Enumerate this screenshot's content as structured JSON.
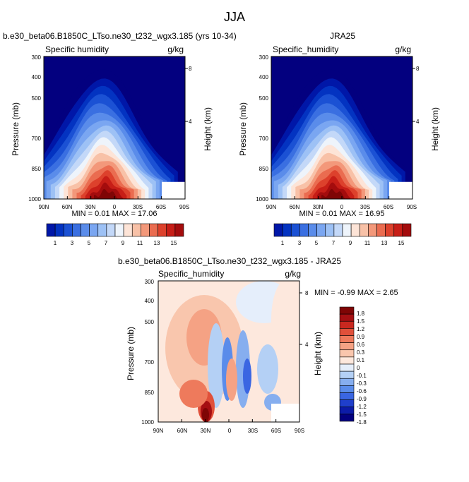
{
  "main_title": "JJA",
  "colors": {
    "fill_scale": [
      "#03007f",
      "#0017a8",
      "#0333c1",
      "#1b51d4",
      "#3a6fe1",
      "#5a8cea",
      "#7aa6f1",
      "#9dc1f5",
      "#c3d8f8",
      "#eef4fb",
      "#fde4d7",
      "#f8c1a7",
      "#f3987a",
      "#ea6c50",
      "#dd412c",
      "#c71e17",
      "#a40c0d",
      "#7f0505"
    ],
    "diff_scale": [
      "#03007f",
      "#0c1ba8",
      "#1f3fcb",
      "#3a66e2",
      "#5a8cea",
      "#86aeef",
      "#b4d0f5",
      "#e5eefb",
      "#ffffff",
      "#fde8dd",
      "#f9c6ad",
      "#f5a284",
      "#ee7a5c",
      "#e0503a",
      "#c9281f",
      "#a50f12",
      "#7f0505"
    ]
  },
  "chart_data": [
    {
      "type": "heatmap",
      "title": "b.e30_beta06.B1850C_LTso.ne30_t232_wgx3.185 (yrs 10-34)",
      "left_label": "Specific humidity",
      "right_label": "g/kg",
      "xlabel": "",
      "ylabel": "Pressure (mb)",
      "y2label": "Height (km)",
      "x_ticks": [
        "90N",
        "60N",
        "30N",
        "0",
        "30S",
        "60S",
        "90S"
      ],
      "y_ticks": [
        "300",
        "400",
        "500",
        "700",
        "850",
        "1000"
      ],
      "y2_ticks": [
        "8",
        "4"
      ],
      "min_max_text": "MIN =  0.01  MAX =  17.06",
      "colorbar_labels": [
        "1",
        "3",
        "5",
        "7",
        "9",
        "11",
        "13",
        "15"
      ]
    },
    {
      "type": "heatmap",
      "title": "JRA25",
      "left_label": "Specific_humidity",
      "right_label": "g/kg",
      "xlabel": "",
      "ylabel": "Pressure (mb)",
      "y2label": "Height (km)",
      "x_ticks": [
        "90N",
        "60N",
        "30N",
        "0",
        "30S",
        "60S",
        "90S"
      ],
      "y_ticks": [
        "300",
        "400",
        "500",
        "700",
        "850",
        "1000"
      ],
      "y2_ticks": [
        "8",
        "4"
      ],
      "min_max_text": "MIN =  0.01  MAX =  16.95",
      "colorbar_labels": [
        "1",
        "3",
        "5",
        "7",
        "9",
        "11",
        "13",
        "15"
      ]
    },
    {
      "type": "heatmap",
      "title": "b.e30_beta06.B1850C_LTso.ne30_t232_wgx3.185 - JRA25",
      "left_label": "Specific_humidity",
      "right_label": "g/kg",
      "xlabel": "",
      "ylabel": "Pressure (mb)",
      "y2label": "Height (km)",
      "x_ticks": [
        "90N",
        "60N",
        "30N",
        "0",
        "30S",
        "60S",
        "90S"
      ],
      "y_ticks": [
        "300",
        "400",
        "500",
        "700",
        "850",
        "1000"
      ],
      "y2_ticks": [
        "8",
        "4"
      ],
      "min_max_text": "MIN = -0.99  MAX =  2.65",
      "colorbar_labels": [
        "1.8",
        "1.5",
        "1.2",
        "0.9",
        "0.6",
        "0.3",
        "0.1",
        "0",
        "-0.1",
        "-0.3",
        "-0.6",
        "-0.9",
        "-1.2",
        "-1.5",
        "-1.8"
      ]
    }
  ]
}
